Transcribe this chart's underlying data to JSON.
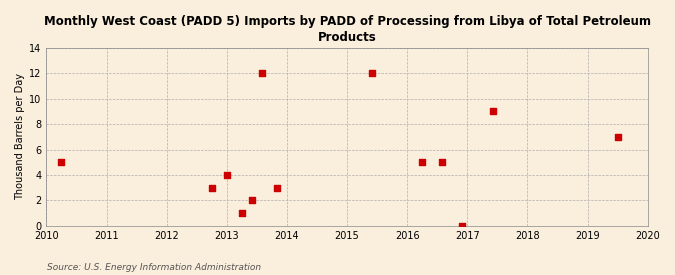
{
  "title": "Monthly West Coast (PADD 5) Imports by PADD of Processing from Libya of Total Petroleum\nProducts",
  "ylabel": "Thousand Barrels per Day",
  "source": "Source: U.S. Energy Information Administration",
  "background_color": "#faeedd",
  "plot_background_color": "#faeedd",
  "marker_color": "#cc0000",
  "marker": "s",
  "marker_size": 16,
  "xlim": [
    2010,
    2020
  ],
  "ylim": [
    0,
    14
  ],
  "yticks": [
    0,
    2,
    4,
    6,
    8,
    10,
    12,
    14
  ],
  "xticks": [
    2010,
    2011,
    2012,
    2013,
    2014,
    2015,
    2016,
    2017,
    2018,
    2019,
    2020
  ],
  "data_x": [
    2010.25,
    2012.75,
    2013.0,
    2013.25,
    2013.42,
    2013.58,
    2013.83,
    2015.42,
    2016.25,
    2016.58,
    2016.92,
    2017.42,
    2019.5
  ],
  "data_y": [
    5,
    3,
    4,
    1,
    2,
    12,
    3,
    12,
    5,
    5,
    0,
    9,
    7
  ],
  "title_fontsize": 8.5,
  "axis_fontsize": 7,
  "source_fontsize": 6.5,
  "ylabel_fontsize": 7
}
